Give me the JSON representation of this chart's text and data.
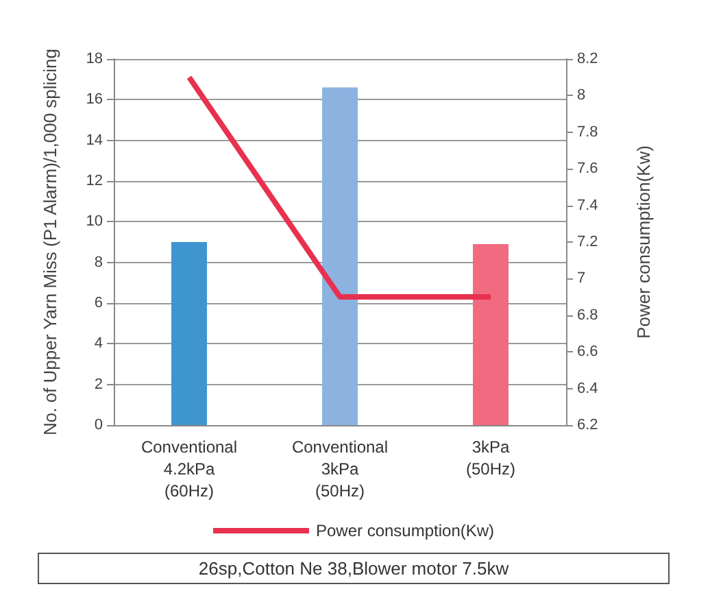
{
  "chart_data": {
    "type": "bar",
    "categories": [
      "Conventional\n4.2kPa\n(60Hz)",
      "Conventional\n3kPa\n(50Hz)",
      "3kPa\n(50Hz)"
    ],
    "ylabel": "No. of Upper Yarn Miss (P1 Alarm)/1,000 splicing",
    "y2label": "Power consumption(Kw)",
    "series": [
      {
        "colors": [
          "#3f95d0",
          "#8cb3e0",
          "#f06b80"
        ],
        "values": [
          9,
          16.6,
          8.9
        ]
      },
      {
        "type": "line",
        "axis": "y2",
        "name": "Power consumption(Kw)",
        "color": "#e8314f",
        "values": [
          8.1,
          6.9,
          6.9
        ]
      }
    ],
    "ylim": [
      0,
      18
    ],
    "yticks": [
      0,
      2,
      4,
      6,
      8,
      10,
      12,
      14,
      16,
      18
    ],
    "y2lim": [
      6.2,
      8.2
    ],
    "y2ticks": [
      6.2,
      6.4,
      6.6,
      6.8,
      7,
      7.2,
      7.4,
      7.6,
      7.8,
      8,
      8.2
    ],
    "grid": "y",
    "legend": "bottom",
    "marker": "none",
    "annotations": [
      "26sp,Cotton Ne 38,Blower motor 7.5kw"
    ]
  }
}
